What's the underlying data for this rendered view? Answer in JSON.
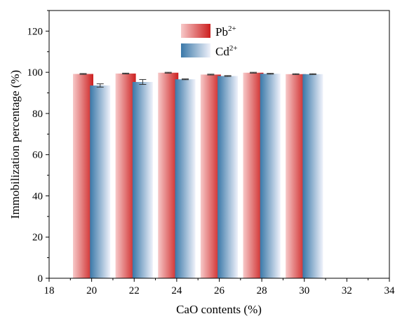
{
  "chart_data": {
    "type": "bar",
    "xlabel": "CaO contents (%)",
    "ylabel": "Immobilization percentage (%)",
    "xlim": [
      18,
      34
    ],
    "ylim": [
      0,
      130
    ],
    "x_ticks": [
      "18",
      "20",
      "22",
      "24",
      "26",
      "28",
      "30",
      "32",
      "34"
    ],
    "y_ticks": [
      "0",
      "20",
      "40",
      "60",
      "80",
      "100",
      "120"
    ],
    "grid": false,
    "legend_position": "top-center",
    "legend": {
      "pb": {
        "base": "Pb",
        "sup": "2+"
      },
      "cd": {
        "base": "Cd",
        "sup": "2+"
      }
    },
    "series": [
      {
        "name": "Pb2+",
        "color": "#d42a2a",
        "x": [
          19.6,
          21.6,
          23.6,
          25.6,
          27.6,
          29.6
        ],
        "values": [
          99.2,
          99.4,
          99.8,
          98.9,
          99.8,
          99.1
        ],
        "errors": [
          0.2,
          0.2,
          0.2,
          0.2,
          0.2,
          0.2
        ]
      },
      {
        "name": "Cd2+",
        "color": "#3f7fae",
        "x": [
          20.4,
          22.4,
          24.4,
          26.4,
          28.4,
          30.4
        ],
        "values": [
          93.6,
          95.3,
          96.6,
          98.2,
          99.3,
          99.1
        ],
        "errors": [
          0.8,
          1.2,
          0.2,
          0.2,
          0.2,
          0.2
        ]
      }
    ]
  }
}
